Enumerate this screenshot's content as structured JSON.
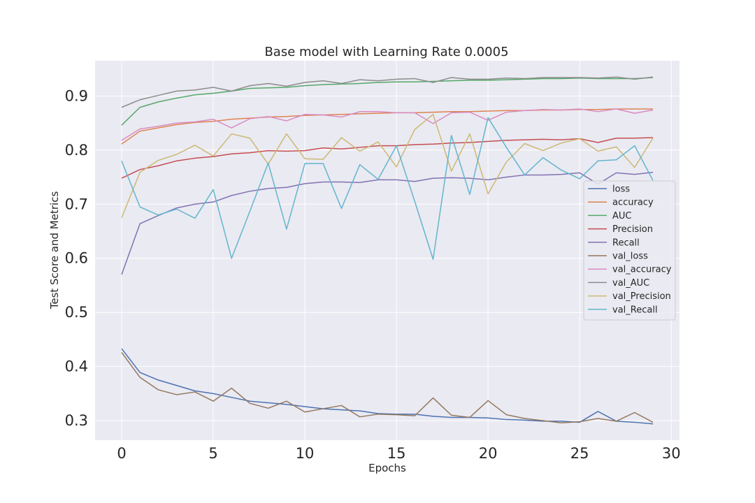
{
  "chart_data": {
    "type": "line",
    "title": "Base model with Learning Rate 0.0005",
    "xlabel": "Epochs",
    "ylabel": "Test Score and Metrics",
    "xlim": [
      -1.45,
      30.45
    ],
    "ylim": [
      0.264,
      0.965
    ],
    "xticks": [
      "0",
      "5",
      "10",
      "15",
      "20",
      "25",
      "30"
    ],
    "xtick_values": [
      0,
      5,
      10,
      15,
      20,
      25,
      30
    ],
    "yticks": [
      "0.3",
      "0.4",
      "0.5",
      "0.6",
      "0.7",
      "0.8",
      "0.9"
    ],
    "ytick_values": [
      0.3,
      0.4,
      0.5,
      0.6,
      0.7,
      0.8,
      0.9
    ],
    "grid": true,
    "legend_position": "right",
    "x": [
      0,
      1,
      2,
      3,
      4,
      5,
      6,
      7,
      8,
      9,
      10,
      11,
      12,
      13,
      14,
      15,
      16,
      17,
      18,
      19,
      20,
      21,
      22,
      23,
      24,
      25,
      26,
      27,
      28,
      29
    ],
    "series": [
      {
        "name": "loss",
        "color": "#4c72b0",
        "values": [
          0.433,
          0.389,
          0.375,
          0.365,
          0.355,
          0.35,
          0.343,
          0.336,
          0.333,
          0.33,
          0.326,
          0.322,
          0.32,
          0.318,
          0.313,
          0.312,
          0.312,
          0.308,
          0.306,
          0.306,
          0.305,
          0.302,
          0.301,
          0.299,
          0.299,
          0.297,
          0.317,
          0.299,
          0.297,
          0.294
        ]
      },
      {
        "name": "accuracy",
        "color": "#dd8452",
        "values": [
          0.811,
          0.835,
          0.841,
          0.847,
          0.851,
          0.853,
          0.857,
          0.859,
          0.861,
          0.862,
          0.864,
          0.865,
          0.866,
          0.867,
          0.868,
          0.869,
          0.869,
          0.87,
          0.871,
          0.871,
          0.872,
          0.873,
          0.873,
          0.874,
          0.874,
          0.875,
          0.875,
          0.876,
          0.876,
          0.876
        ]
      },
      {
        "name": "AUC",
        "color": "#55a868",
        "values": [
          0.846,
          0.879,
          0.889,
          0.896,
          0.902,
          0.905,
          0.909,
          0.914,
          0.915,
          0.916,
          0.919,
          0.921,
          0.922,
          0.923,
          0.925,
          0.926,
          0.926,
          0.927,
          0.928,
          0.929,
          0.929,
          0.93,
          0.931,
          0.932,
          0.932,
          0.933,
          0.932,
          0.932,
          0.932,
          0.934
        ]
      },
      {
        "name": "Precision",
        "color": "#c44e52",
        "values": [
          0.748,
          0.764,
          0.771,
          0.78,
          0.785,
          0.788,
          0.793,
          0.795,
          0.799,
          0.798,
          0.799,
          0.804,
          0.802,
          0.805,
          0.808,
          0.808,
          0.81,
          0.811,
          0.813,
          0.814,
          0.816,
          0.818,
          0.819,
          0.82,
          0.819,
          0.821,
          0.814,
          0.822,
          0.822,
          0.823
        ]
      },
      {
        "name": "Recall",
        "color": "#8172b3",
        "values": [
          0.57,
          0.664,
          0.679,
          0.693,
          0.7,
          0.704,
          0.716,
          0.724,
          0.729,
          0.731,
          0.738,
          0.741,
          0.741,
          0.74,
          0.745,
          0.745,
          0.742,
          0.748,
          0.749,
          0.748,
          0.745,
          0.75,
          0.754,
          0.754,
          0.755,
          0.758,
          0.737,
          0.758,
          0.755,
          0.759
        ]
      },
      {
        "name": "val_loss",
        "color": "#937860",
        "values": [
          0.426,
          0.38,
          0.357,
          0.348,
          0.353,
          0.336,
          0.36,
          0.332,
          0.323,
          0.336,
          0.316,
          0.322,
          0.328,
          0.307,
          0.312,
          0.311,
          0.309,
          0.342,
          0.31,
          0.306,
          0.337,
          0.311,
          0.304,
          0.3,
          0.296,
          0.298,
          0.304,
          0.299,
          0.315,
          0.297
        ]
      },
      {
        "name": "val_accuracy",
        "color": "#da8bc3",
        "values": [
          0.818,
          0.839,
          0.844,
          0.85,
          0.852,
          0.857,
          0.841,
          0.858,
          0.862,
          0.854,
          0.866,
          0.865,
          0.861,
          0.871,
          0.871,
          0.869,
          0.869,
          0.849,
          0.869,
          0.87,
          0.855,
          0.87,
          0.873,
          0.875,
          0.874,
          0.876,
          0.871,
          0.876,
          0.868,
          0.874
        ]
      },
      {
        "name": "val_AUC",
        "color": "#8c8c8c",
        "values": [
          0.879,
          0.893,
          0.901,
          0.909,
          0.911,
          0.916,
          0.909,
          0.919,
          0.923,
          0.918,
          0.925,
          0.928,
          0.923,
          0.93,
          0.928,
          0.931,
          0.932,
          0.925,
          0.934,
          0.931,
          0.931,
          0.933,
          0.932,
          0.934,
          0.934,
          0.934,
          0.933,
          0.935,
          0.931,
          0.935
        ]
      },
      {
        "name": "val_Precision",
        "color": "#ccb974",
        "values": [
          0.675,
          0.759,
          0.781,
          0.792,
          0.809,
          0.789,
          0.83,
          0.822,
          0.774,
          0.83,
          0.784,
          0.783,
          0.823,
          0.798,
          0.815,
          0.769,
          0.838,
          0.866,
          0.761,
          0.83,
          0.719,
          0.778,
          0.812,
          0.799,
          0.813,
          0.821,
          0.798,
          0.806,
          0.768,
          0.822
        ]
      },
      {
        "name": "val_Recall",
        "color": "#64b5cd",
        "values": [
          0.78,
          0.695,
          0.68,
          0.691,
          0.674,
          0.727,
          0.6,
          0.687,
          0.776,
          0.654,
          0.775,
          0.775,
          0.692,
          0.773,
          0.746,
          0.808,
          0.705,
          0.598,
          0.827,
          0.718,
          0.86,
          0.805,
          0.754,
          0.786,
          0.763,
          0.747,
          0.78,
          0.782,
          0.808,
          0.744
        ]
      }
    ]
  }
}
